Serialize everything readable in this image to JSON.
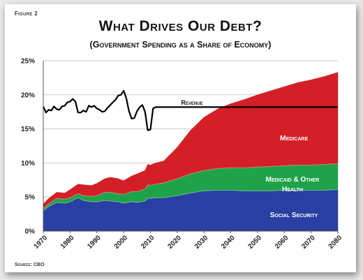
{
  "figure_label": "Figure 2",
  "source": "Source: CBO",
  "chart_data": {
    "type": "area",
    "title": "What Drives Our Debt?",
    "subtitle": "(Government Spending as a Share of Economy)",
    "xlabel": "",
    "ylabel": "",
    "xlim": [
      1970,
      2080
    ],
    "ylim": [
      0,
      25
    ],
    "yticks": [
      "0%",
      "5%",
      "10%",
      "15%",
      "20%",
      "25%"
    ],
    "xticks": [
      "1970",
      "1980",
      "1990",
      "2000",
      "2010",
      "2020",
      "2030",
      "2040",
      "2050",
      "2060",
      "2070",
      "2080"
    ],
    "grid": true,
    "stacked": true,
    "x": [
      1970,
      1972,
      1975,
      1978,
      1980,
      1983,
      1985,
      1988,
      1990,
      1993,
      1995,
      1998,
      2000,
      2003,
      2005,
      2008,
      2009,
      2010,
      2012,
      2015,
      2020,
      2025,
      2030,
      2035,
      2040,
      2045,
      2050,
      2055,
      2060,
      2065,
      2070,
      2075,
      2080
    ],
    "series": [
      {
        "name": "Social Security",
        "color": "#2a3fa3",
        "values": [
          3.0,
          3.6,
          4.2,
          4.1,
          4.3,
          4.9,
          4.5,
          4.3,
          4.3,
          4.5,
          4.4,
          4.3,
          4.1,
          4.3,
          4.2,
          4.4,
          4.8,
          4.8,
          4.9,
          4.9,
          5.2,
          5.6,
          5.9,
          6.0,
          6.0,
          5.9,
          5.9,
          5.9,
          6.0,
          6.0,
          6.0,
          6.0,
          6.1
        ]
      },
      {
        "name": "Medicaid & Other Health",
        "color": "#1fa34a",
        "values": [
          0.3,
          0.4,
          0.6,
          0.6,
          0.6,
          0.6,
          0.7,
          0.8,
          0.9,
          1.2,
          1.3,
          1.2,
          1.3,
          1.5,
          1.6,
          1.8,
          2.0,
          1.9,
          2.0,
          2.2,
          2.5,
          2.8,
          3.0,
          3.2,
          3.3,
          3.4,
          3.5,
          3.6,
          3.6,
          3.7,
          3.7,
          3.8,
          3.8
        ]
      },
      {
        "name": "Medicare",
        "color": "#d41f26",
        "values": [
          0.7,
          0.8,
          0.9,
          0.9,
          1.2,
          1.4,
          1.6,
          1.6,
          1.8,
          2.0,
          2.2,
          2.2,
          2.0,
          2.3,
          2.6,
          2.7,
          3.0,
          3.0,
          3.1,
          3.2,
          4.6,
          6.4,
          7.8,
          8.7,
          9.4,
          10.0,
          10.6,
          11.1,
          11.6,
          12.1,
          12.5,
          12.9,
          13.4
        ]
      }
    ],
    "line_series": {
      "name": "Revenue",
      "color": "#000000",
      "x": [
        1970,
        1971,
        1972,
        1973,
        1974,
        1975,
        1976,
        1977,
        1978,
        1979,
        1980,
        1981,
        1982,
        1983,
        1984,
        1985,
        1986,
        1987,
        1988,
        1989,
        1990,
        1991,
        1992,
        1993,
        1994,
        1995,
        1996,
        1997,
        1998,
        1999,
        2000,
        2001,
        2002,
        2003,
        2004,
        2005,
        2006,
        2007,
        2008,
        2009,
        2010,
        2011,
        2012,
        2080
      ],
      "values": [
        18.3,
        17.4,
        17.8,
        17.7,
        18.3,
        17.9,
        17.8,
        18.3,
        18.4,
        18.9,
        19.0,
        19.4,
        19.0,
        17.4,
        17.4,
        17.7,
        17.5,
        18.4,
        18.2,
        18.4,
        18.0,
        17.8,
        17.5,
        17.6,
        18.1,
        18.5,
        18.9,
        19.3,
        19.9,
        20.0,
        20.6,
        19.5,
        17.6,
        16.5,
        16.6,
        17.6,
        18.2,
        18.5,
        17.5,
        14.8,
        14.9,
        18.0,
        18.2,
        18.2
      ]
    },
    "annotations": {
      "revenue": "Revenue",
      "medicare": "Medicare",
      "medicaid_line1": "Medicaid & Other",
      "medicaid_line2": "Health",
      "social_security": "Social Security"
    }
  }
}
